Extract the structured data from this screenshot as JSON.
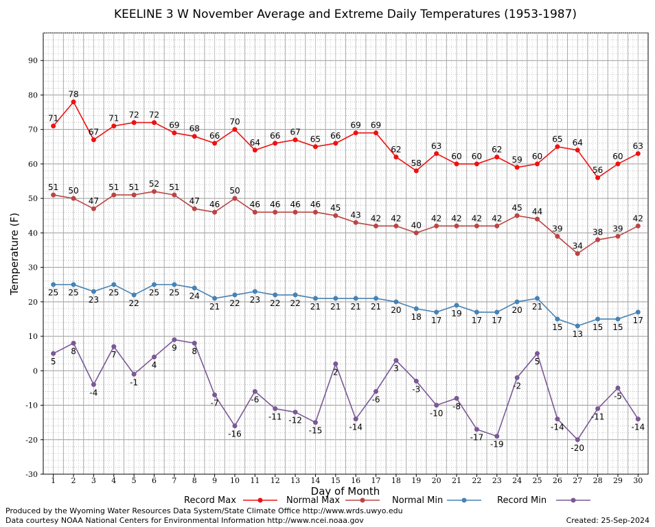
{
  "chart_data": {
    "type": "line",
    "title": "KEELINE 3 W November Average and Extreme Daily Temperatures (1953-1987)",
    "xlabel": "Day of Month",
    "ylabel": "Temperature (F)",
    "xlim": [
      0.5,
      30.5
    ],
    "ylim": [
      -30,
      98
    ],
    "yticks": [
      -30,
      -20,
      -10,
      0,
      10,
      20,
      30,
      40,
      50,
      60,
      70,
      80,
      90
    ],
    "x": [
      1,
      2,
      3,
      4,
      5,
      6,
      7,
      8,
      9,
      10,
      11,
      12,
      13,
      14,
      15,
      16,
      17,
      18,
      19,
      20,
      21,
      22,
      23,
      24,
      25,
      26,
      27,
      28,
      29,
      30
    ],
    "grid": true,
    "legend_position": "bottom",
    "series": [
      {
        "name": "Record Max",
        "color": "#ee1111",
        "label_side": "above",
        "values": [
          71,
          78,
          67,
          71,
          72,
          72,
          69,
          68,
          66,
          70,
          64,
          66,
          67,
          65,
          66,
          69,
          69,
          62,
          58,
          63,
          60,
          60,
          62,
          59,
          60,
          65,
          64,
          56,
          60,
          63
        ]
      },
      {
        "name": "Normal Max",
        "color": "#bb4444",
        "label_side": "above",
        "values": [
          51,
          50,
          47,
          51,
          51,
          52,
          51,
          47,
          46,
          50,
          46,
          46,
          46,
          46,
          45,
          43,
          42,
          42,
          40,
          42,
          42,
          42,
          42,
          45,
          44,
          39,
          34,
          38,
          39,
          42
        ]
      },
      {
        "name": "Normal Min",
        "color": "#4682b4",
        "label_side": "below",
        "values": [
          25,
          25,
          23,
          25,
          22,
          25,
          25,
          24,
          21,
          22,
          23,
          22,
          22,
          21,
          21,
          21,
          21,
          20,
          18,
          17,
          19,
          17,
          17,
          20,
          21,
          15,
          13,
          15,
          15,
          17
        ]
      },
      {
        "name": "Record Min",
        "color": "#7a5896",
        "label_side": "below",
        "values": [
          5,
          8,
          -4,
          7,
          -1,
          4,
          9,
          8,
          -7,
          -16,
          -6,
          -11,
          -12,
          -15,
          2,
          -14,
          -6,
          3,
          -3,
          -10,
          -8,
          -17,
          -19,
          -2,
          5,
          -14,
          -20,
          -11,
          -5,
          -14
        ]
      }
    ]
  },
  "footer": {
    "left_line1": "Produced by the Wyoming Water Resources Data System/State Climate Office http://www.wrds.uwyo.edu",
    "left_line2": "Data courtesy NOAA National Centers for Environmental Information http://www.ncei.noaa.gov",
    "created": "Created:  25-Sep-2024"
  }
}
